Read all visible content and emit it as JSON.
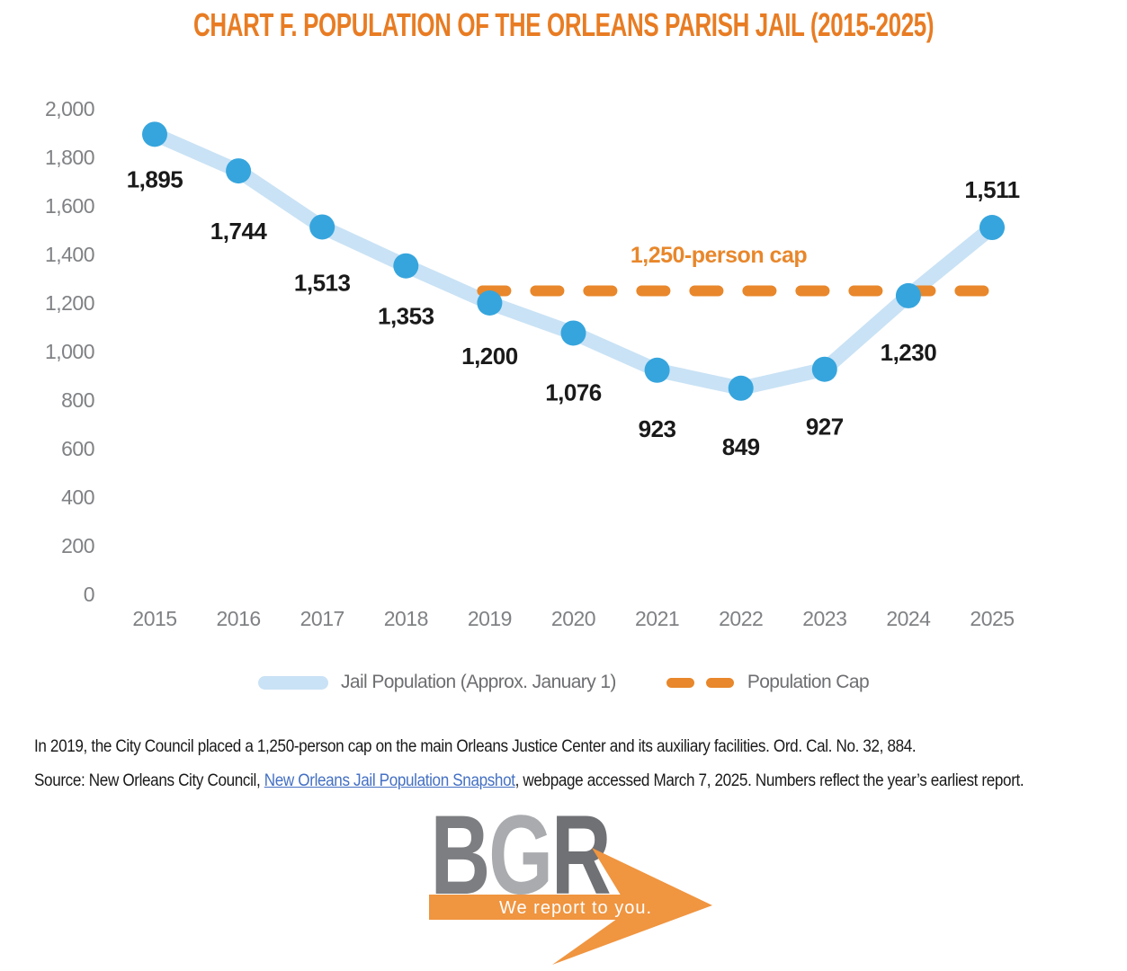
{
  "title": "CHART F. POPULATION OF THE ORLEANS PARISH JAIL (2015-2025)",
  "colors": {
    "title_orange": "#E87C23",
    "cap_orange": "#E8872B",
    "point_blue": "#36A5DD",
    "line_blue": "#C9E2F5",
    "axis_gray": "#7F8184",
    "legend_text_gray": "#6D6E71",
    "label_black": "#1A1A1A",
    "footnote_black": "#1A1A1A",
    "link_blue": "#4470C4",
    "logo_orange": "#F09540"
  },
  "chart_data": {
    "type": "line",
    "title": "CHART F. POPULATION OF THE ORLEANS PARISH JAIL (2015-2025)",
    "x": [
      2015,
      2016,
      2017,
      2018,
      2019,
      2020,
      2021,
      2022,
      2023,
      2024,
      2025
    ],
    "series": [
      {
        "name": "Jail Population (Approx. January 1)",
        "values": [
          1895,
          1744,
          1513,
          1353,
          1200,
          1076,
          923,
          849,
          927,
          1230,
          1511
        ]
      },
      {
        "name": "Population Cap",
        "values": [
          null,
          null,
          null,
          null,
          1250,
          1250,
          1250,
          1250,
          1250,
          1250,
          1250
        ]
      }
    ],
    "annotations": [
      "1,250-person cap"
    ],
    "ylim": [
      0,
      2000
    ],
    "ytick_step": 200,
    "grid": false,
    "legend_position": "bottom",
    "data_labels": true
  },
  "legend": {
    "items": [
      {
        "label": "Jail Population (Approx. January 1)",
        "swatch": "thick-line"
      },
      {
        "label": "Population Cap",
        "swatch": "dashes"
      }
    ]
  },
  "footnotes": {
    "line1": "In 2019, the City Council placed a 1,250-person cap on the main Orleans Justice Center and its auxiliary facilities. Ord. Cal. No. 32, 884.",
    "line2_prefix": "Source: New Orleans City Council, ",
    "line2_link": "New Orleans Jail Population Snapshot",
    "line2_suffix": ", webpage accessed March 7, 2025. Numbers reflect the year’s earliest report."
  },
  "logo": {
    "letters": [
      {
        "char": "B",
        "color": "#7C7E81"
      },
      {
        "char": "G",
        "color": "#A9ABAE"
      },
      {
        "char": "R",
        "color": "#6F7174"
      }
    ],
    "tagline": "We report to you."
  }
}
